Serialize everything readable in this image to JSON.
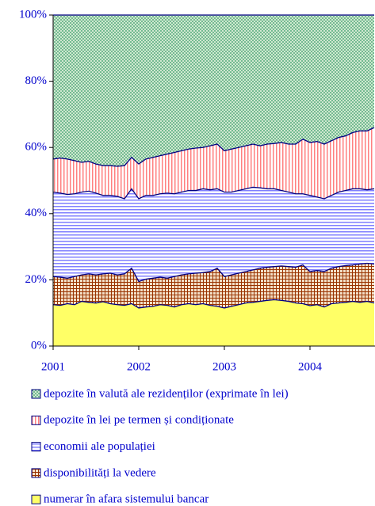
{
  "chart_data": {
    "type": "stacked_area",
    "categories": [
      "2001",
      null,
      null,
      null,
      null,
      null,
      null,
      null,
      null,
      null,
      null,
      null,
      "2002",
      null,
      null,
      null,
      null,
      null,
      null,
      null,
      null,
      null,
      null,
      null,
      "2003",
      null,
      null,
      null,
      null,
      null,
      null,
      null,
      null,
      null,
      null,
      null,
      "2004",
      null,
      null,
      null,
      null,
      null,
      null,
      null,
      null,
      null
    ],
    "ylim": [
      0,
      100
    ],
    "yticks": [
      {
        "value": 0,
        "label": "0%"
      },
      {
        "value": 20,
        "label": "20%"
      },
      {
        "value": 40,
        "label": "40%"
      },
      {
        "value": 60,
        "label": "60%"
      },
      {
        "value": 80,
        "label": "80%"
      },
      {
        "value": 100,
        "label": "100%"
      }
    ],
    "series": [
      {
        "name": "depozite în valută ale rezidenților (exprimate în lei)",
        "color": "#339966",
        "values": [
          43.5,
          43.2,
          43.5,
          44.0,
          44.5,
          44.2,
          45.0,
          45.5,
          45.5,
          45.7,
          45.5,
          43.0,
          45.0,
          43.5,
          43.0,
          42.5,
          42.0,
          41.5,
          41.0,
          40.5,
          40.2,
          40.0,
          39.5,
          39.0,
          41.0,
          40.5,
          40.0,
          39.5,
          39.0,
          39.5,
          39.0,
          38.8,
          38.5,
          39.0,
          39.0,
          37.5,
          38.5,
          38.2,
          39.0,
          38.0,
          37.0,
          36.5,
          35.5,
          35.0,
          35.0,
          34.0
        ]
      },
      {
        "name": "depozite în lei pe termen și condiționate",
        "color": "#ff8080",
        "values": [
          10.0,
          10.6,
          10.7,
          10.0,
          9.0,
          9.0,
          8.8,
          9.0,
          9.0,
          9.1,
          10.0,
          9.5,
          10.5,
          11.0,
          11.5,
          11.5,
          11.8,
          12.5,
          12.5,
          12.5,
          12.8,
          12.5,
          13.3,
          13.5,
          12.5,
          13.0,
          13.0,
          13.0,
          13.0,
          12.7,
          13.5,
          13.7,
          14.5,
          14.5,
          15.0,
          16.5,
          16.0,
          16.8,
          16.5,
          16.5,
          16.5,
          16.5,
          17.0,
          17.5,
          17.8,
          18.5
        ]
      },
      {
        "name": "economii ale populației",
        "color": "#8080ff",
        "values": [
          25.5,
          25.4,
          25.3,
          25.0,
          25.0,
          25.0,
          24.7,
          23.7,
          23.5,
          23.7,
          22.7,
          24.0,
          25.0,
          25.3,
          25.0,
          25.2,
          25.7,
          25.0,
          25.0,
          25.2,
          25.0,
          25.3,
          24.7,
          24.0,
          25.5,
          25.0,
          25.0,
          25.0,
          25.0,
          24.3,
          23.7,
          23.5,
          22.8,
          22.5,
          22.2,
          21.5,
          23.0,
          22.2,
          22.0,
          22.0,
          22.5,
          22.7,
          23.0,
          22.7,
          22.2,
          22.7
        ]
      },
      {
        "name": "disponibilități la vedere",
        "color": "#993300",
        "values": [
          8.5,
          8.5,
          7.7,
          8.5,
          8.0,
          8.6,
          8.5,
          8.4,
          9.2,
          9.0,
          9.5,
          10.7,
          8.0,
          8.4,
          8.5,
          8.3,
          8.2,
          9.2,
          9.0,
          9.0,
          9.5,
          9.4,
          10.2,
          11.5,
          9.5,
          9.5,
          9.5,
          9.5,
          9.8,
          10.0,
          10.0,
          10.0,
          10.4,
          10.5,
          10.8,
          11.7,
          10.3,
          10.3,
          10.7,
          10.7,
          11.0,
          11.1,
          11.0,
          11.6,
          11.5,
          11.8
        ]
      },
      {
        "name": "numerar în afara sistemului bancar",
        "color": "#ffff66",
        "values": [
          12.5,
          12.3,
          12.8,
          12.5,
          13.5,
          13.2,
          13.0,
          13.4,
          12.8,
          12.5,
          12.3,
          12.8,
          11.5,
          11.8,
          12.0,
          12.5,
          12.3,
          11.8,
          12.5,
          12.8,
          12.5,
          12.8,
          12.3,
          12.0,
          11.5,
          12.0,
          12.5,
          13.0,
          13.2,
          13.5,
          13.8,
          14.0,
          13.8,
          13.5,
          13.0,
          12.8,
          12.2,
          12.5,
          11.8,
          12.8,
          13.0,
          13.2,
          13.5,
          13.2,
          13.5,
          13.0
        ]
      }
    ]
  }
}
